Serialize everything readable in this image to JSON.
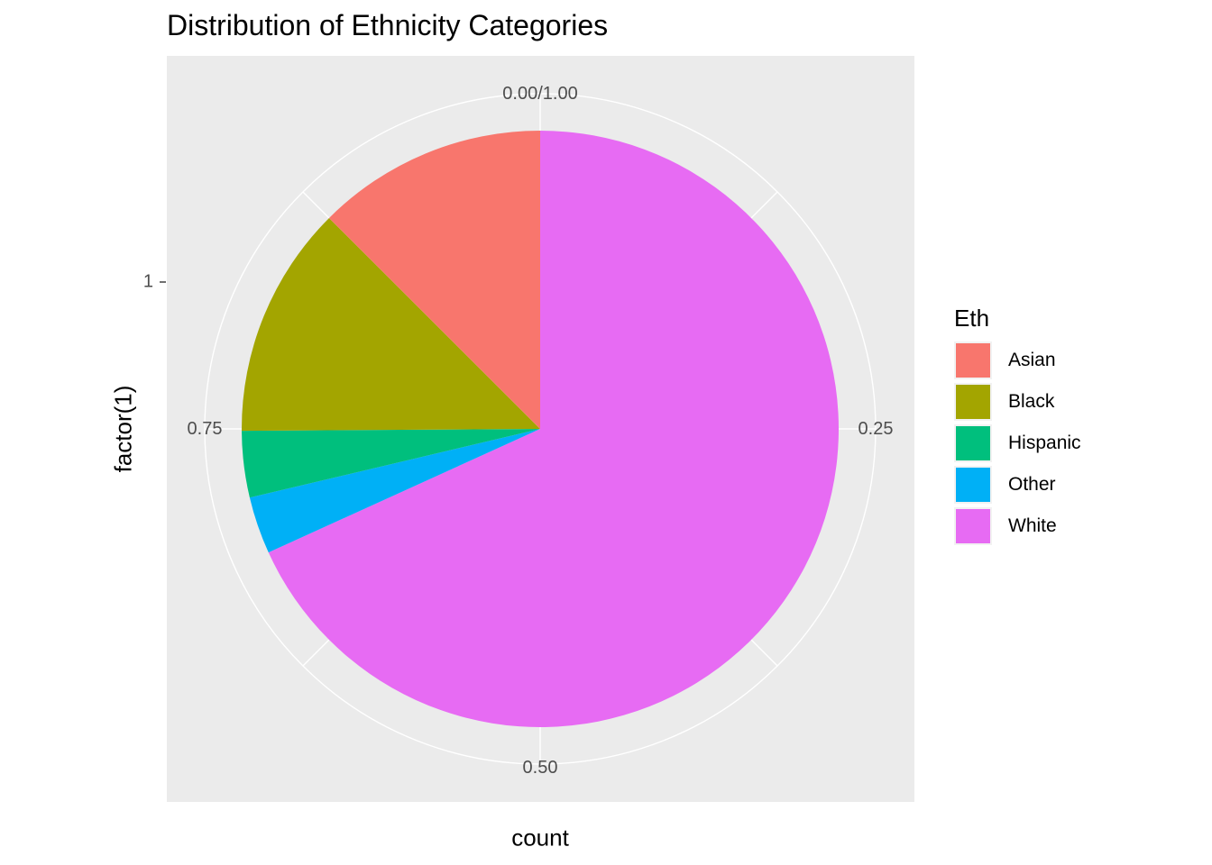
{
  "chart_data": {
    "type": "pie",
    "title": "Distribution of Ethnicity Categories",
    "xlabel": "count",
    "ylabel": "factor(1)",
    "y_tick_labels": [
      "1"
    ],
    "angle_tick_labels": [
      "0.00/1.00",
      "0.25",
      "0.50",
      "0.75"
    ],
    "legend_title": "Eth",
    "legend_position": "right",
    "categories": [
      "Asian",
      "Black",
      "Hispanic",
      "Other",
      "White"
    ],
    "values": [
      0.125,
      0.126,
      0.036,
      0.031,
      0.682
    ],
    "colors": [
      "#F8766D",
      "#A3A500",
      "#00BF7D",
      "#00B0F6",
      "#E76BF3"
    ],
    "panel_background": "#EBEBEB",
    "grid_color": "#FFFFFF"
  }
}
